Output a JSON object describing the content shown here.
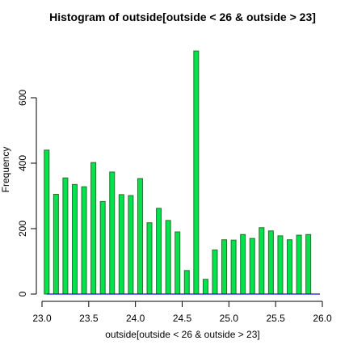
{
  "chart_data": {
    "type": "bar",
    "title": "Histogram of outside[outside < 26 & outside > 23]",
    "xlabel": "outside[outside < 26 & outside > 23]",
    "ylabel": "Frequency",
    "xlim": [
      23.0,
      26.0
    ],
    "ylim": [
      0,
      760
    ],
    "x_ticks": [
      "23.0",
      "23.5",
      "24.0",
      "24.5",
      "25.0",
      "25.5",
      "26.0"
    ],
    "y_ticks": [
      "0",
      "200",
      "400",
      "600"
    ],
    "x": [
      23.05,
      23.15,
      23.25,
      23.35,
      23.45,
      23.55,
      23.65,
      23.75,
      23.85,
      23.95,
      24.05,
      24.15,
      24.25,
      24.35,
      24.45,
      24.55,
      24.65,
      24.75,
      24.85,
      24.95,
      25.05,
      25.15,
      25.25,
      25.35,
      25.45,
      25.55,
      25.65,
      25.75,
      25.85
    ],
    "values": [
      440,
      305,
      355,
      335,
      328,
      402,
      283,
      373,
      304,
      301,
      353,
      218,
      262,
      225,
      190,
      72,
      743,
      45,
      135,
      166,
      165,
      182,
      170,
      203,
      193,
      178,
      166,
      180,
      182
    ],
    "bar_color": "#00e34c",
    "bar_border_color": "#2b6e2e",
    "baseline_color": "#1515c8"
  }
}
